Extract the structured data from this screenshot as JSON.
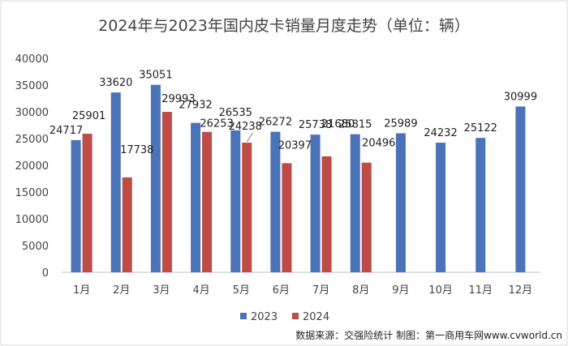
{
  "chart_data": {
    "type": "bar",
    "title": "2024年与2023年国内皮卡销量月度走势（单位：辆）",
    "categories": [
      "1月",
      "2月",
      "3月",
      "4月",
      "5月",
      "6月",
      "7月",
      "8月",
      "9月",
      "10月",
      "11月",
      "12月"
    ],
    "series": [
      {
        "name": "2023",
        "color": "#4a73b8",
        "values": [
          24717,
          33620,
          35051,
          27932,
          26535,
          26272,
          25738,
          25815,
          25989,
          24232,
          25122,
          30999
        ]
      },
      {
        "name": "2024",
        "color": "#bf4b47",
        "values": [
          25901,
          17738,
          29993,
          26253,
          24238,
          20397,
          21680,
          20496,
          null,
          null,
          null,
          null
        ]
      }
    ],
    "ylim": [
      0,
      40000
    ],
    "yticks": [
      0,
      5000,
      10000,
      15000,
      20000,
      25000,
      30000,
      35000,
      40000
    ],
    "grid": false,
    "legend": "bottom-center",
    "source": "数据来源：交强险统计 制图：第一商用车网www.cvworld.cn"
  }
}
